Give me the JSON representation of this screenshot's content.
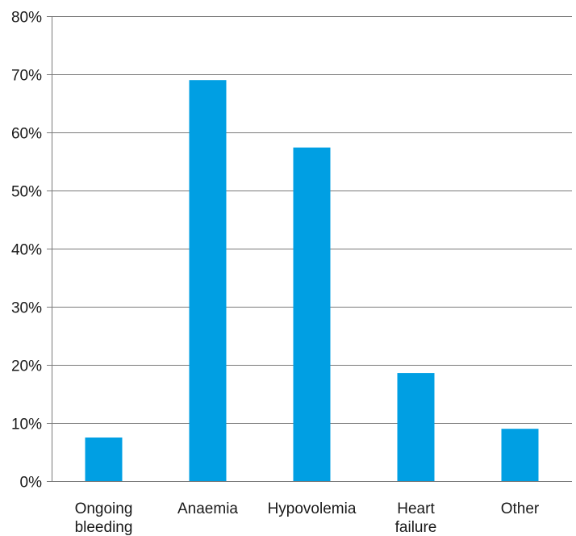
{
  "chart_data": {
    "type": "bar",
    "title": "",
    "xlabel": "",
    "ylabel": "",
    "categories": [
      [
        "Ongoing",
        "bleeding"
      ],
      [
        "Anaemia"
      ],
      [
        "Hypovolemia"
      ],
      [
        "Heart",
        "failure"
      ],
      [
        "Other"
      ]
    ],
    "values": [
      7.5,
      69,
      57.4,
      18.6,
      9
    ],
    "ylim": [
      0,
      80
    ],
    "yticks": [
      0,
      10,
      20,
      30,
      40,
      50,
      60,
      70,
      80
    ],
    "ytick_labels": [
      "0%",
      "10%",
      "20%",
      "30%",
      "40%",
      "50%",
      "60%",
      "70%",
      "80%"
    ],
    "grid": true,
    "legend": "none",
    "bar_color": "#009FE3"
  }
}
